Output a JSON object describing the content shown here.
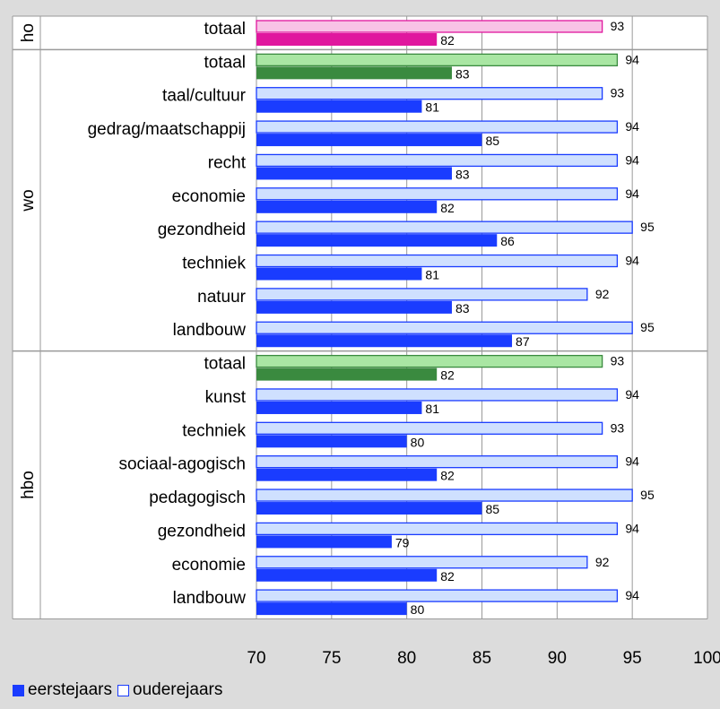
{
  "chart_data": {
    "type": "bar",
    "orientation": "horizontal",
    "xlim": [
      70,
      100
    ],
    "xticks": [
      70,
      75,
      80,
      85,
      90,
      95,
      100
    ],
    "grid": true,
    "legend_position": "bottom-left",
    "series": [
      {
        "name": "eerstejaars"
      },
      {
        "name": "ouderejaars"
      }
    ],
    "groups": [
      {
        "label": "ho",
        "color_theme": "magenta",
        "rows": [
          {
            "label": "totaal",
            "eerstejaars": 82,
            "ouderejaars": 93,
            "is_total": true
          }
        ]
      },
      {
        "label": "wo",
        "color_theme": "green-blue",
        "rows": [
          {
            "label": "totaal",
            "eerstejaars": 83,
            "ouderejaars": 94,
            "is_total": true
          },
          {
            "label": "taal/cultuur",
            "eerstejaars": 81,
            "ouderejaars": 93
          },
          {
            "label": "gedrag/maatschappij",
            "eerstejaars": 85,
            "ouderejaars": 94
          },
          {
            "label": "recht",
            "eerstejaars": 83,
            "ouderejaars": 94
          },
          {
            "label": "economie",
            "eerstejaars": 82,
            "ouderejaars": 94
          },
          {
            "label": "gezondheid",
            "eerstejaars": 86,
            "ouderejaars": 95
          },
          {
            "label": "techniek",
            "eerstejaars": 81,
            "ouderejaars": 94
          },
          {
            "label": "natuur",
            "eerstejaars": 83,
            "ouderejaars": 92
          },
          {
            "label": "landbouw",
            "eerstejaars": 87,
            "ouderejaars": 95
          }
        ]
      },
      {
        "label": "hbo",
        "color_theme": "green-blue",
        "rows": [
          {
            "label": "totaal",
            "eerstejaars": 82,
            "ouderejaars": 93,
            "is_total": true
          },
          {
            "label": "kunst",
            "eerstejaars": 81,
            "ouderejaars": 94
          },
          {
            "label": "techniek",
            "eerstejaars": 80,
            "ouderejaars": 93
          },
          {
            "label": "sociaal-agogisch",
            "eerstejaars": 82,
            "ouderejaars": 94
          },
          {
            "label": "pedagogisch",
            "eerstejaars": 85,
            "ouderejaars": 95
          },
          {
            "label": "gezondheid",
            "eerstejaars": 79,
            "ouderejaars": 94
          },
          {
            "label": "economie",
            "eerstejaars": 82,
            "ouderejaars": 92
          },
          {
            "label": "landbouw",
            "eerstejaars": 80,
            "ouderejaars": 94
          }
        ]
      }
    ],
    "colors": {
      "plot_bg": "#ffffff",
      "grid": "#9a9a9a",
      "blue_fill": "#1a3cff",
      "blue_light": "#cfe0ff",
      "green_dark": "#3a8a3f",
      "green_light": "#a9e6a3",
      "magenta_dark": "#e0179e",
      "magenta_light": "#f8c3e6"
    }
  }
}
